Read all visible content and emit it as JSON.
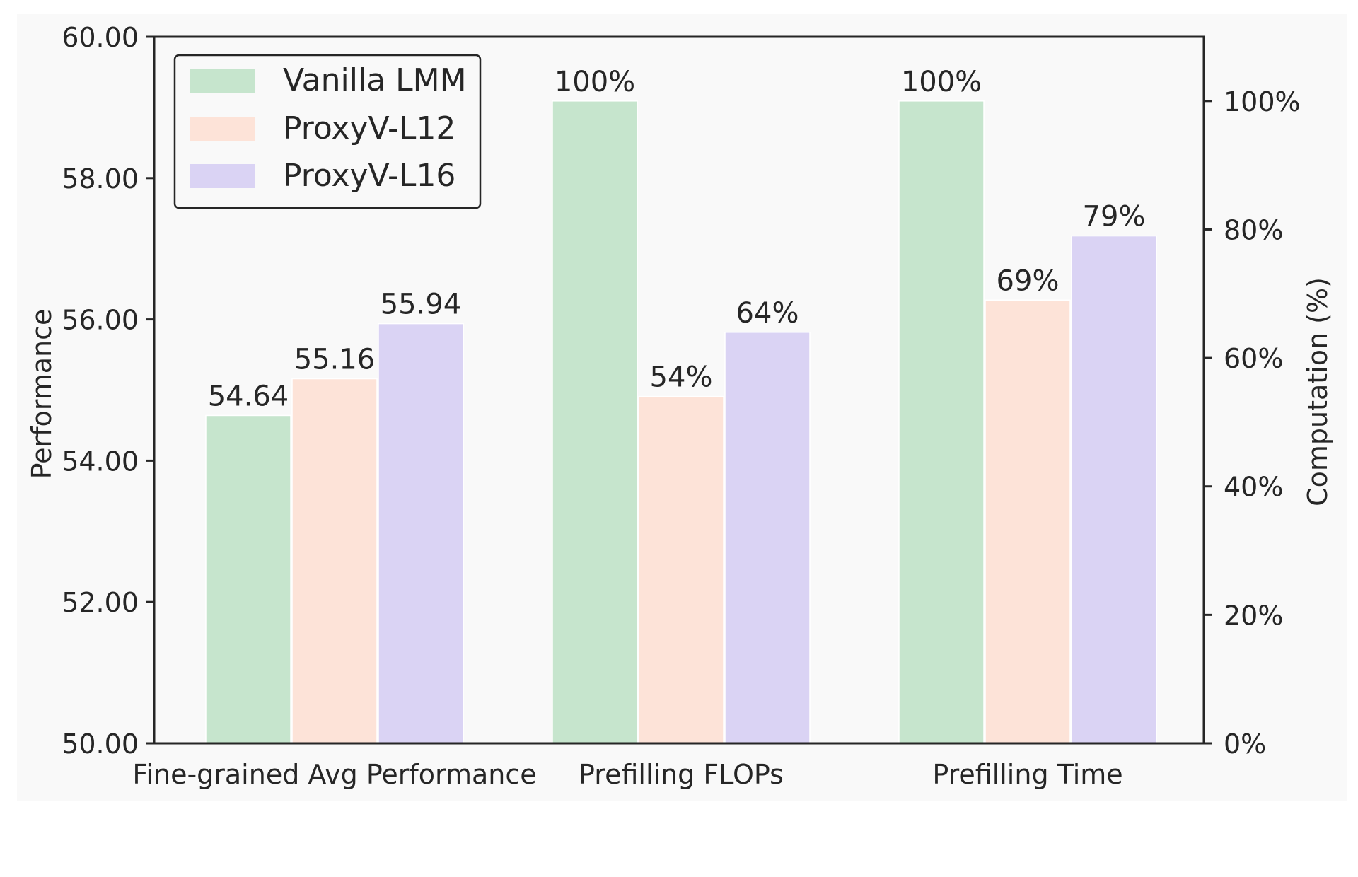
{
  "chart_data": {
    "type": "bar",
    "categories": [
      "Fine-grained Avg Performance",
      "Prefilling FLOPs",
      "Prefilling Time"
    ],
    "series": [
      {
        "name": "Vanilla LMM",
        "color": "#c6e5cd"
      },
      {
        "name": "ProxyV-L12",
        "color": "#fde3d8"
      },
      {
        "name": "ProxyV-L16",
        "color": "#dad3f4"
      }
    ],
    "groups": [
      {
        "category": "Fine-grained Avg Performance",
        "axis": "left",
        "values": [
          54.64,
          55.16,
          55.94
        ],
        "labels": [
          "54.64",
          "55.16",
          "55.94"
        ]
      },
      {
        "category": "Prefilling FLOPs",
        "axis": "right",
        "values": [
          100,
          54,
          64
        ],
        "labels": [
          "100%",
          "54%",
          "64%"
        ]
      },
      {
        "category": "Prefilling Time",
        "axis": "right",
        "values": [
          100,
          69,
          79
        ],
        "labels": [
          "100%",
          "69%",
          "79%"
        ]
      }
    ],
    "left_axis": {
      "label": "Performance",
      "ylim": [
        50,
        60
      ],
      "ticks": [
        50,
        52,
        54,
        56,
        58,
        60
      ],
      "tick_labels": [
        "50.00",
        "52.00",
        "54.00",
        "56.00",
        "58.00",
        "60.00"
      ]
    },
    "right_axis": {
      "label": "Computation (%)",
      "ylim": [
        0,
        110
      ],
      "ticks": [
        0,
        20,
        40,
        60,
        80,
        100
      ],
      "tick_labels": [
        "0%",
        "20%",
        "40%",
        "60%",
        "80%",
        "100%"
      ]
    },
    "legend_position": "top-left",
    "grid": false,
    "background": "#f9f9f9"
  }
}
